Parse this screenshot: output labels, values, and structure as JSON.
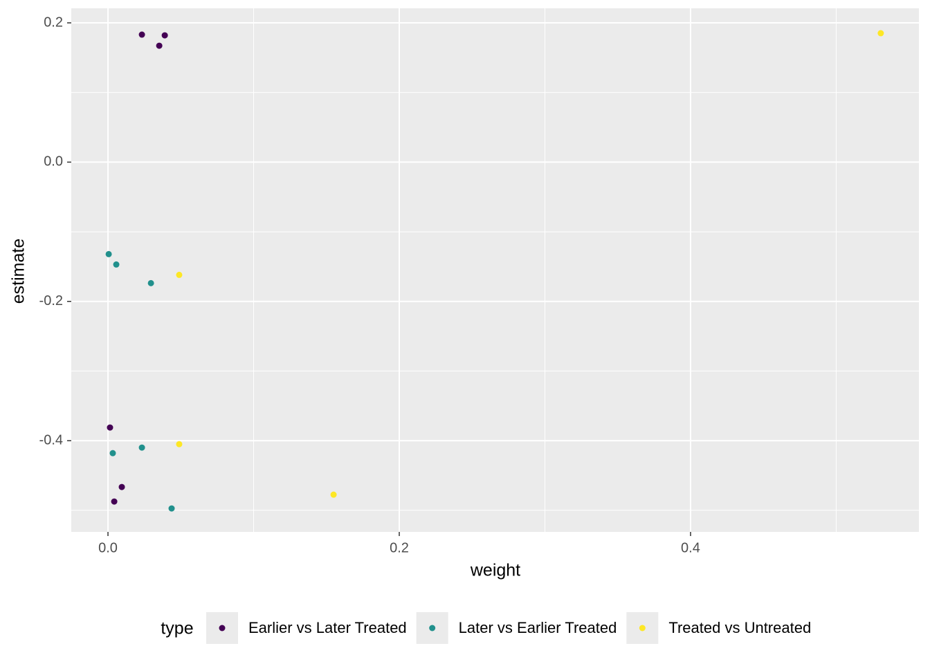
{
  "chart_data": {
    "type": "scatter",
    "x_label": "weight",
    "y_label": "estimate",
    "legend_title": "type",
    "legend_position": "bottom",
    "grid": true,
    "xlim": [
      -0.0252,
      0.5568
    ],
    "ylim": [
      -0.531,
      0.2209
    ],
    "xticks": [
      {
        "value": 0,
        "label": "0.0"
      },
      0.2,
      0.4
    ],
    "yticks": [
      {
        "value": 0.2,
        "label": "0.2"
      },
      {
        "value": 0,
        "label": "0.0"
      },
      -0.2,
      -0.4
    ],
    "minor_xticks": [
      0.1,
      0.3,
      0.5
    ],
    "minor_yticks": [
      0.1,
      -0.1,
      -0.3,
      -0.5
    ],
    "series": [
      {
        "name": "Earlier vs Later Treated",
        "color": "#440154",
        "x": [
          0.0233,
          0.039,
          0.0352,
          0.0014,
          0.0095,
          0.0043
        ],
        "values": [
          0.1831,
          0.1821,
          0.1672,
          -0.3811,
          -0.4665,
          -0.4874
        ]
      },
      {
        "name": "Later vs Earlier Treated",
        "color": "#21908C",
        "x": [
          0.0005,
          0.0057,
          0.0295,
          0.0033,
          0.0233,
          0.0437
        ],
        "values": [
          -0.1321,
          -0.147,
          -0.1738,
          -0.4179,
          -0.4099,
          -0.4973
        ]
      },
      {
        "name": "Treated vs Untreated",
        "color": "#FDE725",
        "x": [
          0.5306,
          0.0489,
          0.0489,
          0.1549
        ],
        "values": [
          0.1851,
          -0.1619,
          -0.405,
          -0.4775
        ]
      }
    ]
  }
}
